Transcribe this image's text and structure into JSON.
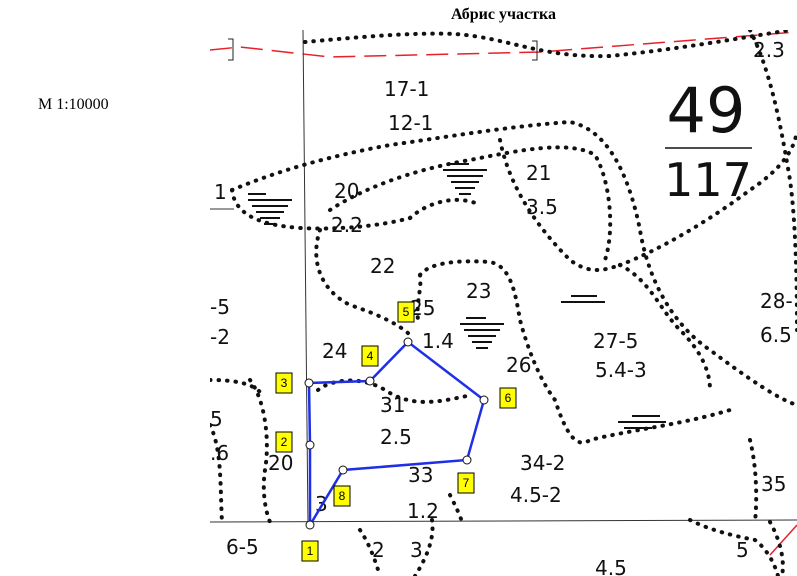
{
  "title": "Абрис участка",
  "scale": "М 1:10000",
  "quarter": {
    "number": "49",
    "area": "117"
  },
  "parcel_points": [
    "1",
    "2",
    "3",
    "4",
    "5",
    "6",
    "7",
    "8"
  ],
  "labels": {
    "l_17_1": "17-1",
    "l_12_1": "12-1",
    "l_20": "20",
    "l_2_2": "2.2",
    "l_21": "21",
    "l_3_5": "3.5",
    "l_22": "22",
    "l_25": "25",
    "l_23": "23",
    "l_1_4": "1.4",
    "l_24": "24",
    "l_26": "26",
    "l_27_5": "27-5",
    "l_5_4_3": "5.4-3",
    "l_31": "31",
    "l_2_5": "2.5",
    "l_33": "33",
    "l_34_2": "34-2",
    "l_4_5_2": "4.5-2",
    "l_3": "3",
    "l_1_2": "1.2",
    "l_6_5": "6-5",
    "l_2b": "2",
    "l_3b": "3",
    "l_4_5": "4.5",
    "l_5": "5",
    "l_35": "35",
    "l_28": "28-",
    "l_6_5b": "6.5",
    "l_2_3": "2.3",
    "l_left_5a": "-5",
    "l_left_2": "-2",
    "l_left_5b": "5",
    "l_left_6": ".6",
    "l_left_20": "20",
    "l_left_1": "1"
  }
}
